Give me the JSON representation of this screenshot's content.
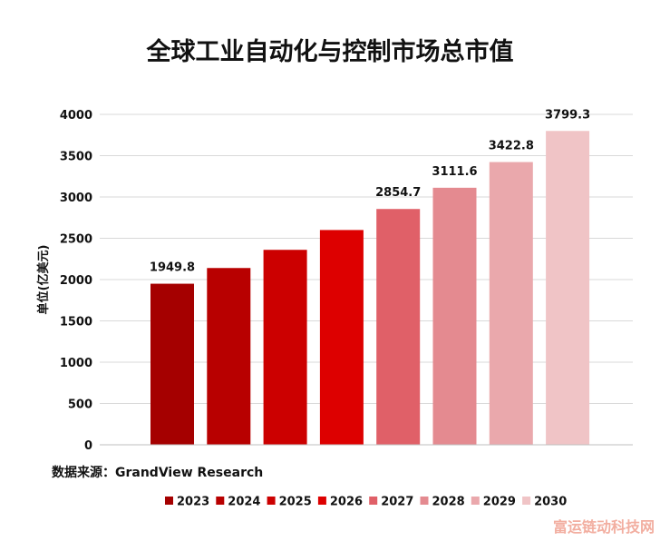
{
  "chart_data": {
    "type": "bar",
    "title": "全球工业自动化与控制市场总市值",
    "ylabel": "单位(亿美元)",
    "xlabel": "",
    "ylim": [
      0,
      4000
    ],
    "yticks": [
      0,
      500,
      1000,
      1500,
      2000,
      2500,
      3000,
      3500,
      4000
    ],
    "categories": [
      "2023",
      "2024",
      "2025",
      "2026",
      "2027",
      "2028",
      "2029",
      "2030"
    ],
    "values": [
      1949.8,
      2140,
      2360,
      2600,
      2854.7,
      3111.6,
      3422.8,
      3799.3
    ],
    "data_labels": [
      "1949.8",
      "",
      "",
      "",
      "2854.7",
      "3111.6",
      "3422.8",
      "3799.3"
    ],
    "colors": [
      "#a50000",
      "#b80000",
      "#cc0000",
      "#dd0000",
      "#e06068",
      "#e48a90",
      "#eaa8ac",
      "#f0c4c6"
    ],
    "grid": true,
    "legend": "bottom"
  },
  "source": "数据来源：GrandView Research",
  "watermark": "富运链动科技网"
}
